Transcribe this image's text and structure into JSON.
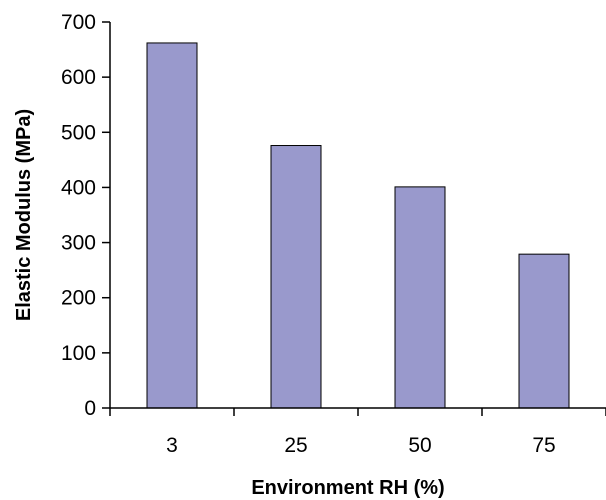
{
  "chart_data": {
    "type": "bar",
    "categories": [
      "3",
      "25",
      "50",
      "75"
    ],
    "values": [
      662,
      476,
      401,
      279
    ],
    "xlabel": "Environment RH (%)",
    "ylabel": "Elastic Modulus (MPa)",
    "ylim": [
      0,
      700
    ],
    "yticks": [
      0,
      100,
      200,
      300,
      400,
      500,
      600,
      700
    ],
    "grid": false,
    "legend": "none",
    "bar_color": "#9999cc"
  }
}
